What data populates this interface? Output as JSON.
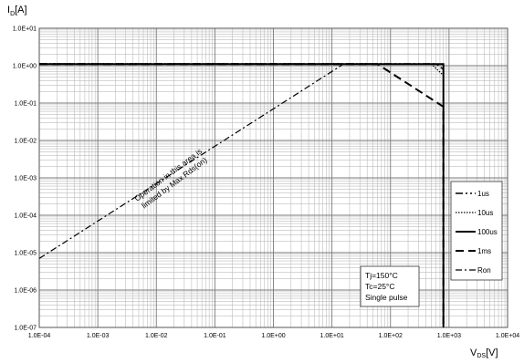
{
  "chart_data": {
    "type": "line",
    "title": "",
    "xlabel": {
      "main": "V",
      "sub": "DS",
      "unit": "[V]"
    },
    "ylabel": {
      "main": "I",
      "sub": "D",
      "unit": "[A]"
    },
    "x_scale": "log",
    "y_scale": "log",
    "xlim": [
      0.0001,
      10000
    ],
    "ylim": [
      1e-07,
      10
    ],
    "grid": true,
    "legend_position": "right",
    "x_ticks": [
      {
        "v": 0.0001,
        "label": "1.0E-04"
      },
      {
        "v": 0.001,
        "label": "1.0E-03"
      },
      {
        "v": 0.01,
        "label": "1.0E-02"
      },
      {
        "v": 0.1,
        "label": "1.0E-01"
      },
      {
        "v": 1,
        "label": "1.0E+00"
      },
      {
        "v": 10,
        "label": "1.0E+01"
      },
      {
        "v": 100,
        "label": "1.0E+02"
      },
      {
        "v": 1000,
        "label": "1.0E+03"
      },
      {
        "v": 10000,
        "label": "1.0E+04"
      }
    ],
    "y_ticks": [
      {
        "v": 1e-07,
        "label": "1.0E-07"
      },
      {
        "v": 1e-06,
        "label": "1.0E-06"
      },
      {
        "v": 1e-05,
        "label": "1.0E-05"
      },
      {
        "v": 0.0001,
        "label": "1.0E-04"
      },
      {
        "v": 0.001,
        "label": "1.0E-03"
      },
      {
        "v": 0.01,
        "label": "1.0E-02"
      },
      {
        "v": 0.1,
        "label": "1.0E-01"
      },
      {
        "v": 1,
        "label": "1.0E+00"
      },
      {
        "v": 10,
        "label": "1.0E+01"
      }
    ],
    "series": [
      {
        "name": "1us",
        "dash": "8 3 2 3 2 3",
        "width": 1.4,
        "points": [
          [
            0.0001,
            1.12
          ],
          [
            600,
            1.12
          ],
          [
            800,
            0.8
          ],
          [
            800,
            1e-07
          ]
        ]
      },
      {
        "name": "10us",
        "dash": "1.5 1.5",
        "width": 1.2,
        "points": [
          [
            0.0001,
            1.1
          ],
          [
            500,
            1.1
          ],
          [
            800,
            0.55
          ],
          [
            800,
            1e-07
          ]
        ]
      },
      {
        "name": "100us",
        "dash": "",
        "width": 2,
        "points": [
          [
            0.0001,
            1.1
          ],
          [
            800,
            1.1
          ],
          [
            800,
            1e-07
          ]
        ]
      },
      {
        "name": "1ms",
        "dash": "9 5",
        "width": 2,
        "points": [
          [
            0.0001,
            1.1
          ],
          [
            60,
            1.1
          ],
          [
            800,
            0.08
          ],
          [
            800,
            1e-07
          ]
        ]
      },
      {
        "name": "Ron",
        "dash": "7 3 2 3",
        "width": 1.2,
        "points": [
          [
            0.0001,
            7e-06
          ],
          [
            15,
            1.05
          ]
        ]
      }
    ],
    "annotations": {
      "region_note": [
        "Operation in this area is",
        "limited by Max Rds(on)"
      ],
      "conditions": [
        "Tj=150°C",
        "Tc=25°C",
        "Single pulse"
      ]
    }
  }
}
